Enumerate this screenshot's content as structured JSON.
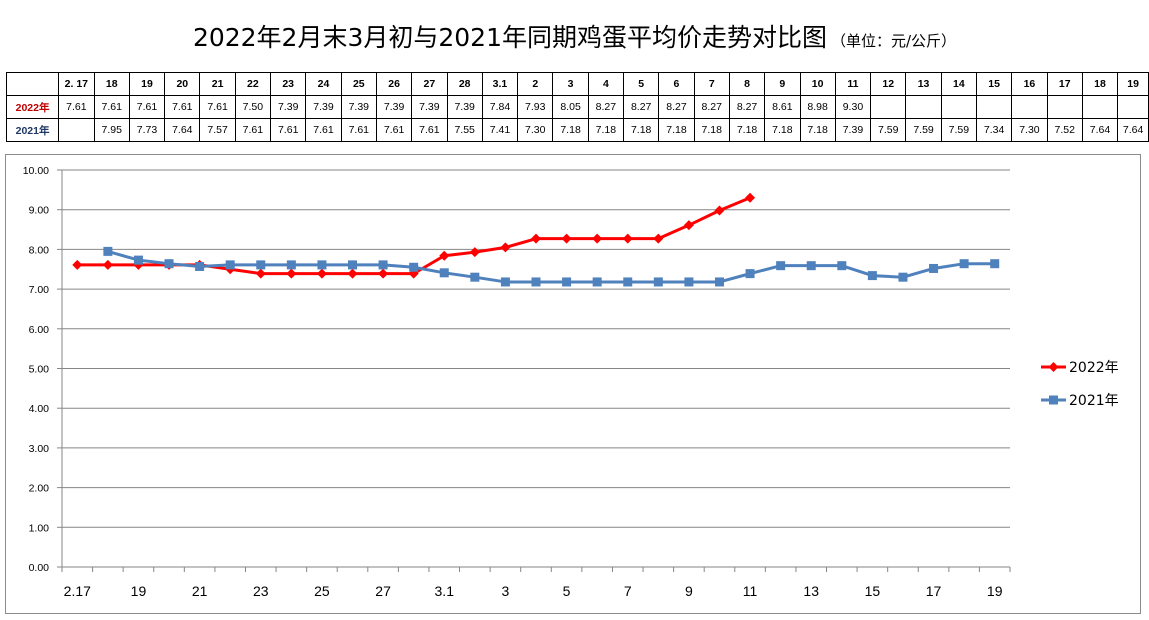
{
  "title": {
    "main": "2022年2月末3月初与2021年同期鸡蛋平均价走势对比图",
    "unit": "（单位：元/公斤）"
  },
  "colors": {
    "s2022": "#ff0000",
    "s2021": "#4f81bd",
    "label2022": "#c00000",
    "label2021": "#1f3864",
    "grid": "#868686"
  },
  "table": {
    "header": [
      "",
      "2. 17",
      "18",
      "19",
      "20",
      "21",
      "22",
      "23",
      "24",
      "25",
      "26",
      "27",
      "28",
      "3.1",
      "2",
      "3",
      "4",
      "5",
      "6",
      "7",
      "8",
      "9",
      "10",
      "11",
      "12",
      "13",
      "14",
      "15",
      "16",
      "17",
      "18",
      "19"
    ],
    "rows": [
      {
        "label": "2022年",
        "cells": [
          "7.61",
          "7.61",
          "7.61",
          "7.61",
          "7.61",
          "7.50",
          "7.39",
          "7.39",
          "7.39",
          "7.39",
          "7.39",
          "7.39",
          "7.84",
          "7.93",
          "8.05",
          "8.27",
          "8.27",
          "8.27",
          "8.27",
          "8.27",
          "8.61",
          "8.98",
          "9.30",
          "",
          "",
          "",
          "",
          "",
          "",
          "",
          ""
        ]
      },
      {
        "label": "2021年",
        "cells": [
          "",
          "7.95",
          "7.73",
          "7.64",
          "7.57",
          "7.61",
          "7.61",
          "7.61",
          "7.61",
          "7.61",
          "7.61",
          "7.55",
          "7.41",
          "7.30",
          "7.18",
          "7.18",
          "7.18",
          "7.18",
          "7.18",
          "7.18",
          "7.18",
          "7.18",
          "7.39",
          "7.59",
          "7.59",
          "7.59",
          "7.34",
          "7.30",
          "7.52",
          "7.64",
          "7.64"
        ]
      }
    ]
  },
  "chart_data": {
    "type": "line",
    "x": [
      "2.17",
      "18",
      "19",
      "20",
      "21",
      "22",
      "23",
      "24",
      "25",
      "26",
      "27",
      "28",
      "3.1",
      "2",
      "3",
      "4",
      "5",
      "6",
      "7",
      "8",
      "9",
      "10",
      "11",
      "12",
      "13",
      "14",
      "15",
      "16",
      "17",
      "18",
      "19"
    ],
    "x_tick_labels": [
      "2.17",
      "19",
      "21",
      "23",
      "25",
      "27",
      "3.1",
      "3",
      "5",
      "7",
      "9",
      "11",
      "13",
      "15",
      "17",
      "19"
    ],
    "ylim": [
      0,
      10
    ],
    "y_ticks": [
      "0.00",
      "1.00",
      "2.00",
      "3.00",
      "4.00",
      "5.00",
      "6.00",
      "7.00",
      "8.00",
      "9.00",
      "10.00"
    ],
    "grid": "horizontal",
    "legend_position": "right",
    "series": [
      {
        "name": "2022年",
        "marker": "diamond",
        "values": [
          7.61,
          7.61,
          7.61,
          7.61,
          7.61,
          7.5,
          7.39,
          7.39,
          7.39,
          7.39,
          7.39,
          7.39,
          7.84,
          7.93,
          8.05,
          8.27,
          8.27,
          8.27,
          8.27,
          8.27,
          8.61,
          8.98,
          9.3,
          null,
          null,
          null,
          null,
          null,
          null,
          null,
          null
        ]
      },
      {
        "name": "2021年",
        "marker": "square",
        "values": [
          null,
          7.95,
          7.73,
          7.64,
          7.57,
          7.61,
          7.61,
          7.61,
          7.61,
          7.61,
          7.61,
          7.55,
          7.41,
          7.3,
          7.18,
          7.18,
          7.18,
          7.18,
          7.18,
          7.18,
          7.18,
          7.18,
          7.39,
          7.59,
          7.59,
          7.59,
          7.34,
          7.3,
          7.52,
          7.64,
          7.64
        ]
      }
    ]
  }
}
